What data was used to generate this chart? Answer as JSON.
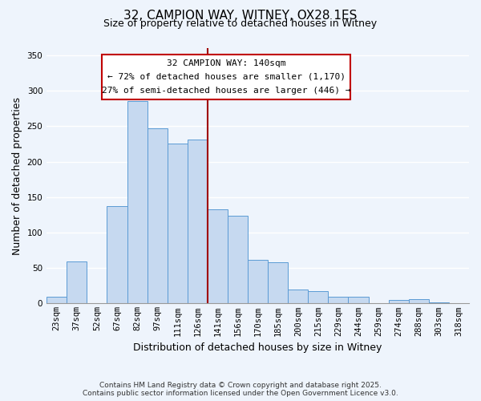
{
  "title": "32, CAMPION WAY, WITNEY, OX28 1ES",
  "subtitle": "Size of property relative to detached houses in Witney",
  "xlabel": "Distribution of detached houses by size in Witney",
  "ylabel": "Number of detached properties",
  "categories": [
    "23sqm",
    "37sqm",
    "52sqm",
    "67sqm",
    "82sqm",
    "97sqm",
    "111sqm",
    "126sqm",
    "141sqm",
    "156sqm",
    "170sqm",
    "185sqm",
    "200sqm",
    "215sqm",
    "229sqm",
    "244sqm",
    "259sqm",
    "274sqm",
    "288sqm",
    "303sqm",
    "318sqm"
  ],
  "values": [
    10,
    59,
    0,
    137,
    285,
    247,
    226,
    231,
    133,
    124,
    62,
    58,
    20,
    17,
    9,
    9,
    0,
    5,
    6,
    2,
    0
  ],
  "bar_color": "#c6d9f0",
  "bar_edge_color": "#5b9bd5",
  "vline_x": 8.0,
  "vline_color": "#a00000",
  "ylim": [
    0,
    360
  ],
  "yticks": [
    0,
    50,
    100,
    150,
    200,
    250,
    300,
    350
  ],
  "annotation_title": "32 CAMPION WAY: 140sqm",
  "annotation_line1": "← 72% of detached houses are smaller (1,170)",
  "annotation_line2": "27% of semi-detached houses are larger (446) →",
  "annotation_box_edge": "#c00000",
  "footer_line1": "Contains HM Land Registry data © Crown copyright and database right 2025.",
  "footer_line2": "Contains public sector information licensed under the Open Government Licence v3.0.",
  "bg_color": "#eef4fc",
  "grid_color": "#ffffff",
  "title_fontsize": 11,
  "subtitle_fontsize": 9,
  "ylabel_fontsize": 9,
  "xlabel_fontsize": 9,
  "tick_fontsize": 7.5,
  "footer_fontsize": 6.5,
  "ann_title_fontsize": 8,
  "ann_text_fontsize": 8
}
